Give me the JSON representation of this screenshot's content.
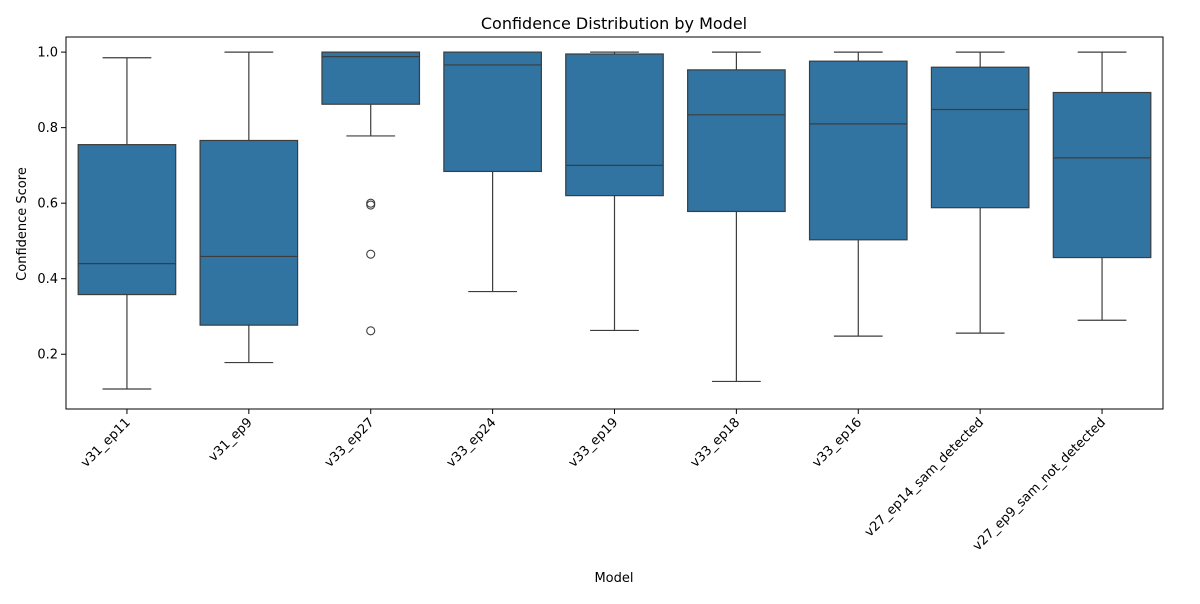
{
  "chart_data": {
    "type": "box",
    "title": "Confidence Distribution by Model",
    "xlabel": "Model",
    "ylabel": "Confidence Score",
    "ylim": [
      0.055,
      1.04
    ],
    "yticks": [
      0.2,
      0.4,
      0.6,
      0.8,
      1.0
    ],
    "ytick_labels": [
      "0.2",
      "0.4",
      "0.6",
      "0.8",
      "1.0"
    ],
    "grid": false,
    "box_color": "#3274a1",
    "line_color": "#3d3d3d",
    "boxes": [
      {
        "label": "v31_ep11",
        "whislo": 0.108,
        "q1": 0.358,
        "med": 0.44,
        "q3": 0.755,
        "whishi": 0.985,
        "fliers": []
      },
      {
        "label": "v31_ep9",
        "whislo": 0.178,
        "q1": 0.277,
        "med": 0.459,
        "q3": 0.766,
        "whishi": 1.0,
        "fliers": []
      },
      {
        "label": "v33_ep27",
        "whislo": 0.778,
        "q1": 0.862,
        "med": 0.988,
        "q3": 1.0,
        "whishi": 1.0,
        "fliers": [
          0.6,
          0.595,
          0.465,
          0.262
        ]
      },
      {
        "label": "v33_ep24",
        "whislo": 0.366,
        "q1": 0.684,
        "med": 0.966,
        "q3": 1.0,
        "whishi": 1.0,
        "fliers": []
      },
      {
        "label": "v33_ep19",
        "whislo": 0.263,
        "q1": 0.62,
        "med": 0.7,
        "q3": 0.995,
        "whishi": 1.0,
        "fliers": []
      },
      {
        "label": "v33_ep18",
        "whislo": 0.128,
        "q1": 0.578,
        "med": 0.834,
        "q3": 0.953,
        "whishi": 1.0,
        "fliers": []
      },
      {
        "label": "v33_ep16",
        "whislo": 0.248,
        "q1": 0.503,
        "med": 0.81,
        "q3": 0.976,
        "whishi": 1.0,
        "fliers": []
      },
      {
        "label": "v27_ep14_sam_detected",
        "whislo": 0.256,
        "q1": 0.588,
        "med": 0.848,
        "q3": 0.96,
        "whishi": 1.0,
        "fliers": []
      },
      {
        "label": "v27_ep9_sam_not_detected",
        "whislo": 0.29,
        "q1": 0.456,
        "med": 0.72,
        "q3": 0.893,
        "whishi": 1.0,
        "fliers": []
      }
    ]
  }
}
